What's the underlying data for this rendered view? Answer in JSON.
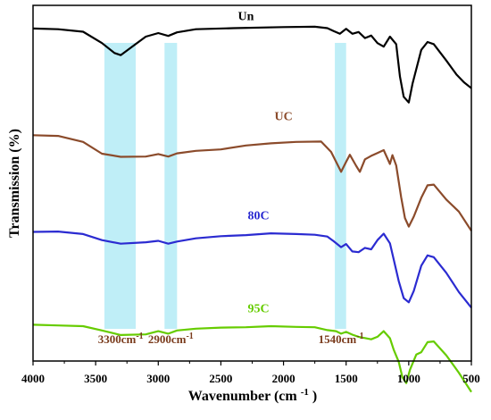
{
  "chart_data": {
    "type": "line",
    "xlabel": "Wavenumber (cm",
    "xlabel_sup": "-1",
    "xlabel_end": ")",
    "ylabel": "Transmission (%)",
    "xlim": [
      4000,
      500
    ],
    "x_reversed": true,
    "xticks": [
      4000,
      3500,
      3000,
      2500,
      2000,
      1500,
      1000,
      500
    ],
    "grid": false,
    "bands": [
      {
        "from": 3430,
        "to": 3180,
        "label": "3300cm",
        "label_sup": "-1",
        "color": "#bfeef7"
      },
      {
        "from": 2950,
        "to": 2850,
        "label": "2900cm",
        "label_sup": "-1",
        "color": "#bfeef7"
      },
      {
        "from": 1590,
        "to": 1500,
        "label": "1540cm",
        "label_sup": "-1",
        "color": "#bfeef7"
      }
    ],
    "series": [
      {
        "name": "Un",
        "color": "#000000",
        "points": [
          [
            4000,
            6.5
          ],
          [
            3800,
            6.7
          ],
          [
            3600,
            7.4
          ],
          [
            3450,
            10.6
          ],
          [
            3350,
            13.4
          ],
          [
            3300,
            14
          ],
          [
            3200,
            11.4
          ],
          [
            3100,
            8.8
          ],
          [
            3000,
            7.8
          ],
          [
            2920,
            8.6
          ],
          [
            2850,
            7.6
          ],
          [
            2700,
            6.7
          ],
          [
            2400,
            6.4
          ],
          [
            2000,
            6.1
          ],
          [
            1750,
            6.0
          ],
          [
            1650,
            6.4
          ],
          [
            1600,
            7.2
          ],
          [
            1550,
            8.0
          ],
          [
            1500,
            6.6
          ],
          [
            1450,
            8.0
          ],
          [
            1400,
            7.5
          ],
          [
            1350,
            9.2
          ],
          [
            1300,
            8.5
          ],
          [
            1250,
            10.6
          ],
          [
            1200,
            11.6
          ],
          [
            1150,
            8.8
          ],
          [
            1100,
            10.9
          ],
          [
            1070,
            20
          ],
          [
            1040,
            25.7
          ],
          [
            1000,
            27.3
          ],
          [
            970,
            22
          ],
          [
            900,
            12.5
          ],
          [
            850,
            10.3
          ],
          [
            800,
            10.9
          ],
          [
            700,
            15.5
          ],
          [
            620,
            19.4
          ],
          [
            560,
            21.6
          ],
          [
            500,
            23.3
          ]
        ]
      },
      {
        "name": "UC",
        "color": "#8b4b2b",
        "points": [
          [
            4000,
            36.5
          ],
          [
            3800,
            36.7
          ],
          [
            3600,
            38.4
          ],
          [
            3450,
            41.7
          ],
          [
            3300,
            42.6
          ],
          [
            3100,
            42.5
          ],
          [
            3000,
            41.8
          ],
          [
            2920,
            42.5
          ],
          [
            2850,
            41.6
          ],
          [
            2700,
            40.9
          ],
          [
            2500,
            40.5
          ],
          [
            2300,
            39.4
          ],
          [
            2100,
            38.8
          ],
          [
            1900,
            38.4
          ],
          [
            1700,
            38.3
          ],
          [
            1620,
            41.2
          ],
          [
            1580,
            44
          ],
          [
            1540,
            46.8
          ],
          [
            1500,
            44
          ],
          [
            1470,
            42
          ],
          [
            1420,
            45.1
          ],
          [
            1390,
            46.8
          ],
          [
            1350,
            43.3
          ],
          [
            1300,
            42.3
          ],
          [
            1250,
            41.5
          ],
          [
            1200,
            40.7
          ],
          [
            1150,
            44.6
          ],
          [
            1130,
            42.1
          ],
          [
            1100,
            45
          ],
          [
            1060,
            54
          ],
          [
            1030,
            59.8
          ],
          [
            1000,
            62.2
          ],
          [
            960,
            59.4
          ],
          [
            900,
            54.1
          ],
          [
            850,
            50.6
          ],
          [
            800,
            50.4
          ],
          [
            700,
            54.6
          ],
          [
            600,
            58
          ],
          [
            500,
            63.4
          ]
        ]
      },
      {
        "name": "80C",
        "color": "#2b2bd1",
        "points": [
          [
            4000,
            63.7
          ],
          [
            3800,
            63.6
          ],
          [
            3600,
            64.3
          ],
          [
            3450,
            66
          ],
          [
            3300,
            67
          ],
          [
            3100,
            66.6
          ],
          [
            3000,
            66.2
          ],
          [
            2920,
            67
          ],
          [
            2850,
            66.4
          ],
          [
            2700,
            65.5
          ],
          [
            2500,
            64.9
          ],
          [
            2300,
            64.6
          ],
          [
            2100,
            64.1
          ],
          [
            1900,
            64.3
          ],
          [
            1750,
            64.5
          ],
          [
            1650,
            65
          ],
          [
            1600,
            66.3
          ],
          [
            1540,
            68
          ],
          [
            1500,
            67.1
          ],
          [
            1450,
            69.2
          ],
          [
            1400,
            69.4
          ],
          [
            1350,
            68.2
          ],
          [
            1300,
            68.6
          ],
          [
            1250,
            66
          ],
          [
            1200,
            64.2
          ],
          [
            1150,
            66.9
          ],
          [
            1120,
            71.4
          ],
          [
            1080,
            77.5
          ],
          [
            1040,
            82.3
          ],
          [
            1000,
            83.5
          ],
          [
            960,
            80.3
          ],
          [
            900,
            73.2
          ],
          [
            850,
            70.3
          ],
          [
            800,
            70.8
          ],
          [
            700,
            75.2
          ],
          [
            600,
            80.6
          ],
          [
            500,
            85
          ]
        ]
      },
      {
        "name": "95C",
        "color": "#66cc00",
        "points": [
          [
            4000,
            89.8
          ],
          [
            3800,
            90
          ],
          [
            3600,
            90.2
          ],
          [
            3450,
            91.4
          ],
          [
            3300,
            92.7
          ],
          [
            3100,
            92.5
          ],
          [
            3000,
            91.6
          ],
          [
            2920,
            92.3
          ],
          [
            2850,
            91.4
          ],
          [
            2700,
            90.9
          ],
          [
            2500,
            90.6
          ],
          [
            2300,
            90.5
          ],
          [
            2100,
            90.2
          ],
          [
            1900,
            90.4
          ],
          [
            1750,
            90.5
          ],
          [
            1650,
            91.3
          ],
          [
            1580,
            91.6
          ],
          [
            1540,
            92.3
          ],
          [
            1500,
            91.8
          ],
          [
            1450,
            92.6
          ],
          [
            1400,
            93.2
          ],
          [
            1300,
            93.9
          ],
          [
            1250,
            93.2
          ],
          [
            1200,
            91.6
          ],
          [
            1150,
            93.6
          ],
          [
            1120,
            96.8
          ],
          [
            1080,
            100.2
          ],
          [
            1050,
            104.6
          ],
          [
            1020,
            106.2
          ],
          [
            990,
            102.4
          ],
          [
            940,
            98.2
          ],
          [
            900,
            97.5
          ],
          [
            850,
            94.7
          ],
          [
            800,
            94.5
          ],
          [
            700,
            98.4
          ],
          [
            600,
            103.3
          ],
          [
            500,
            108.7
          ]
        ]
      }
    ],
    "series_label_positions": [
      {
        "name": "Un",
        "x": 2300,
        "y": 4.2
      },
      {
        "name": "UC",
        "x": 2000,
        "y": 32.3
      },
      {
        "name": "80C",
        "x": 2200,
        "y": 60.2
      },
      {
        "name": "95C",
        "x": 2200,
        "y": 86.3
      }
    ]
  }
}
